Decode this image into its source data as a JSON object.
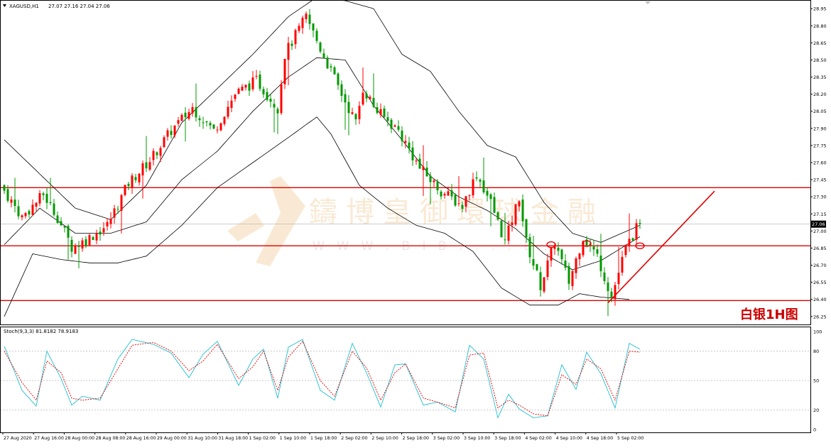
{
  "header": {
    "symbol_label": "XAGUSD,H1",
    "ohlc_label": "27.07 27.16 27.04 27.06"
  },
  "watermark": {
    "text": "鑄博皇御環球金融",
    "url_text": "W W W . B I B . . . . E . ."
  },
  "annotation": {
    "label": "白银1H图"
  },
  "colors": {
    "bull": "#ff0000",
    "bear": "#009900",
    "hline": "#e00000",
    "bands": "#000000",
    "stoch_main": "#20c0d0",
    "stoch_signal": "#e00000",
    "price_tag_bg": "#000000"
  },
  "indicator": {
    "label": "Stoch(9,3,3) 81.8182 78.9183"
  },
  "chart_data": [
    {
      "type": "candlestick",
      "title": "XAGUSD,H1",
      "ylim": [
        26.18,
        29.02
      ],
      "y_ticks": [
        "28.95",
        "28.80",
        "28.65",
        "28.50",
        "28.35",
        "28.20",
        "28.05",
        "27.90",
        "27.75",
        "27.60",
        "27.45",
        "27.30",
        "27.15",
        "27.00",
        "26.85",
        "26.70",
        "26.55",
        "26.40",
        "26.25"
      ],
      "current_price": "27.06",
      "x_ticks": [
        "27 Aug 2020",
        "27 Aug 16:00",
        "28 Aug 00:00",
        "28 Aug 08:00",
        "28 Aug 16:00",
        "29 Aug 00:00",
        "31 Aug 10:00",
        "31 Aug 18:00",
        "1 Sep 02:00",
        "1 Sep 10:00",
        "1 Sep 18:00",
        "2 Sep 02:00",
        "2 Sep 10:00",
        "2 Sep 18:00",
        "3 Sep 02:00",
        "3 Sep 10:00",
        "3 Sep 18:00",
        "4 Sep 02:00",
        "4 Sep 10:00",
        "4 Sep 18:00",
        "5 Sep 02:00"
      ],
      "horizontal_levels": [
        27.38,
        26.87,
        26.39
      ],
      "path": [
        [
          0,
          27.4
        ],
        [
          6,
          27.12
        ],
        [
          12,
          27.32
        ],
        [
          16,
          27.12
        ],
        [
          20,
          26.86
        ],
        [
          24,
          26.92
        ],
        [
          30,
          27.05
        ],
        [
          36,
          27.42
        ],
        [
          42,
          27.62
        ],
        [
          48,
          27.88
        ],
        [
          54,
          28.08
        ],
        [
          60,
          27.88
        ],
        [
          66,
          28.2
        ],
        [
          72,
          28.32
        ],
        [
          78,
          28.08
        ],
        [
          80,
          28.55
        ],
        [
          86,
          28.88
        ],
        [
          90,
          28.6
        ],
        [
          96,
          28.2
        ],
        [
          100,
          27.95
        ],
        [
          102,
          28.25
        ],
        [
          106,
          28.05
        ],
        [
          112,
          27.88
        ],
        [
          118,
          27.55
        ],
        [
          124,
          27.35
        ],
        [
          130,
          27.22
        ],
        [
          134,
          27.5
        ],
        [
          138,
          27.25
        ],
        [
          142,
          26.9
        ],
        [
          146,
          27.3
        ],
        [
          148,
          26.9
        ],
        [
          152,
          26.52
        ],
        [
          156,
          26.9
        ],
        [
          160,
          26.55
        ],
        [
          164,
          26.95
        ],
        [
          168,
          26.78
        ],
        [
          172,
          26.42
        ],
        [
          176,
          26.85
        ],
        [
          179,
          27.02
        ]
      ],
      "bollinger": {
        "upper": [
          [
            0,
            27.8
          ],
          [
            10,
            27.5
          ],
          [
            20,
            27.2
          ],
          [
            30,
            27.1
          ],
          [
            40,
            27.4
          ],
          [
            50,
            27.95
          ],
          [
            60,
            28.25
          ],
          [
            70,
            28.55
          ],
          [
            80,
            28.88
          ],
          [
            88,
            29.05
          ],
          [
            96,
            29.02
          ],
          [
            104,
            28.95
          ],
          [
            112,
            28.55
          ],
          [
            120,
            28.4
          ],
          [
            128,
            28.05
          ],
          [
            136,
            27.75
          ],
          [
            144,
            27.65
          ],
          [
            152,
            27.25
          ],
          [
            160,
            26.98
          ],
          [
            168,
            26.9
          ],
          [
            179,
            27.05
          ]
        ],
        "middle": [
          [
            0,
            26.88
          ],
          [
            10,
            27.2
          ],
          [
            20,
            26.98
          ],
          [
            30,
            26.98
          ],
          [
            40,
            27.08
          ],
          [
            50,
            27.45
          ],
          [
            60,
            27.7
          ],
          [
            70,
            28.05
          ],
          [
            80,
            28.35
          ],
          [
            88,
            28.52
          ],
          [
            96,
            28.5
          ],
          [
            104,
            28.1
          ],
          [
            112,
            27.8
          ],
          [
            120,
            27.48
          ],
          [
            128,
            27.3
          ],
          [
            136,
            27.18
          ],
          [
            144,
            27.02
          ],
          [
            152,
            26.8
          ],
          [
            160,
            26.66
          ],
          [
            168,
            26.74
          ],
          [
            179,
            26.95
          ]
        ],
        "lower": [
          [
            0,
            26.25
          ],
          [
            8,
            26.8
          ],
          [
            16,
            26.75
          ],
          [
            24,
            26.72
          ],
          [
            32,
            26.72
          ],
          [
            40,
            26.78
          ],
          [
            50,
            27.05
          ],
          [
            60,
            27.38
          ],
          [
            70,
            27.6
          ],
          [
            80,
            27.82
          ],
          [
            88,
            28.0
          ],
          [
            92,
            27.85
          ],
          [
            100,
            27.4
          ],
          [
            108,
            27.2
          ],
          [
            116,
            27.05
          ],
          [
            124,
            26.98
          ],
          [
            132,
            26.82
          ],
          [
            140,
            26.5
          ],
          [
            148,
            26.35
          ],
          [
            156,
            26.35
          ],
          [
            162,
            26.45
          ],
          [
            168,
            26.42
          ],
          [
            176,
            26.4
          ]
        ]
      },
      "trendline": {
        "from": [
          170,
          26.37
        ],
        "to": [
          200,
          27.35
        ]
      },
      "highlighted_points": [
        [
          154,
          26.88
        ],
        [
          164,
          26.89
        ],
        [
          179,
          26.87
        ]
      ]
    },
    {
      "type": "line",
      "title": "Stoch(9,3,3) 81.8182 78.9183",
      "ylim": [
        0,
        100
      ],
      "y_ticks": [
        "100",
        "80",
        "50",
        "20",
        "0"
      ],
      "levels": [
        80,
        50,
        20
      ],
      "series": [
        {
          "x": [
            0,
            5,
            9,
            12,
            16,
            19,
            22,
            27,
            32,
            36,
            42,
            47,
            52,
            56,
            60,
            66,
            70,
            73,
            77,
            80,
            84,
            89,
            93,
            98,
            102,
            106,
            110,
            113,
            118,
            122,
            127,
            131,
            135,
            139,
            142,
            145,
            149,
            153,
            157,
            161,
            164,
            168,
            172,
            176,
            179
          ],
          "values": [
            85,
            40,
            24,
            80,
            52,
            25,
            34,
            30,
            72,
            92,
            87,
            78,
            53,
            77,
            90,
            45,
            72,
            82,
            32,
            84,
            92,
            40,
            30,
            88,
            58,
            23,
            66,
            67,
            25,
            28,
            18,
            86,
            72,
            12,
            36,
            21,
            12,
            14,
            66,
            41,
            79,
            57,
            22,
            88,
            82
          ]
        },
        {
          "x": [
            0,
            5,
            9,
            12,
            16,
            19,
            22,
            27,
            32,
            36,
            42,
            47,
            52,
            56,
            60,
            66,
            70,
            73,
            77,
            80,
            84,
            89,
            93,
            98,
            102,
            106,
            110,
            113,
            118,
            122,
            127,
            131,
            135,
            139,
            142,
            145,
            149,
            153,
            157,
            161,
            164,
            168,
            172,
            176,
            179
          ],
          "values": [
            80,
            48,
            30,
            70,
            58,
            32,
            30,
            32,
            62,
            86,
            89,
            80,
            60,
            70,
            87,
            52,
            64,
            80,
            40,
            74,
            90,
            50,
            34,
            80,
            63,
            30,
            58,
            67,
            32,
            28,
            22,
            76,
            78,
            22,
            30,
            25,
            16,
            14,
            56,
            46,
            72,
            62,
            30,
            80,
            79
          ]
        }
      ]
    }
  ]
}
